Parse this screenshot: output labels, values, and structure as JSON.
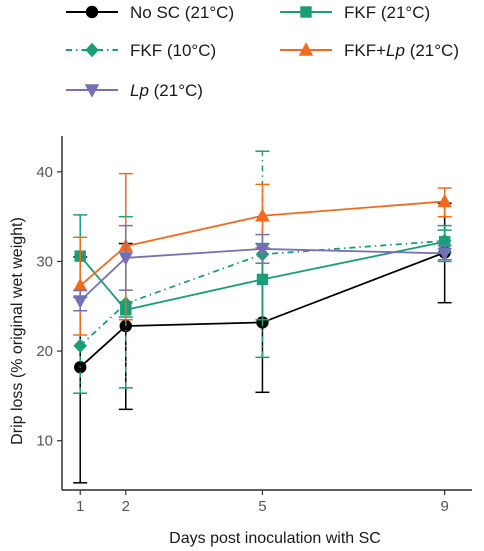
{
  "chart_data": {
    "type": "line",
    "xlabel": "Days post inoculation with SC",
    "ylabel": "Drip loss (% original wet weight)",
    "x": [
      1,
      2,
      5,
      9
    ],
    "xlim": [
      0.6,
      9.6
    ],
    "ylim": [
      4.5,
      44
    ],
    "xticks": [
      "1",
      "2",
      "5",
      "9"
    ],
    "yticks": [
      "10",
      "20",
      "30",
      "40"
    ],
    "legend_position": "top",
    "series": [
      {
        "name": "No SC (21°C)",
        "color": "#000000",
        "marker": "circle",
        "linestyle": "solid",
        "values": [
          18.2,
          22.8,
          23.2,
          31.0
        ],
        "error_low": [
          5.3,
          13.5,
          15.4,
          25.4
        ],
        "error_high": [
          30.5,
          32.0,
          31.5,
          36.5
        ]
      },
      {
        "name": "FKF (21°C)",
        "color": "#1a9e77",
        "marker": "square",
        "linestyle": "solid",
        "values": [
          30.6,
          24.6,
          28.0,
          32.2
        ],
        "error_low": [
          26.0,
          23.8,
          23.5,
          30.0
        ],
        "error_high": [
          35.2,
          25.5,
          32.0,
          34.0
        ]
      },
      {
        "name": "FKF (10°C)",
        "color": "#1a9e77",
        "marker": "diamond",
        "linestyle": "dashdot",
        "values": [
          20.6,
          25.3,
          30.8,
          32.3
        ],
        "error_low": [
          15.3,
          15.9,
          19.3,
          31.0
        ],
        "error_high": [
          26.0,
          35.0,
          42.3,
          33.5
        ]
      },
      {
        "name": "FKF+Lp (21°C)",
        "color": "#f26b1d",
        "marker": "triangle-up",
        "linestyle": "solid",
        "values": [
          27.3,
          31.7,
          35.1,
          36.7
        ],
        "error_low": [
          21.8,
          23.5,
          31.5,
          35.0
        ],
        "error_high": [
          32.7,
          39.8,
          38.6,
          38.2
        ]
      },
      {
        "name": "Lp (21°C)",
        "color": "#7570b3",
        "marker": "triangle-down",
        "linestyle": "solid",
        "values": [
          25.6,
          30.4,
          31.4,
          30.9
        ],
        "error_low": [
          24.5,
          26.8,
          29.8,
          30.2
        ],
        "error_high": [
          26.8,
          34.0,
          33.0,
          31.8
        ]
      }
    ]
  }
}
